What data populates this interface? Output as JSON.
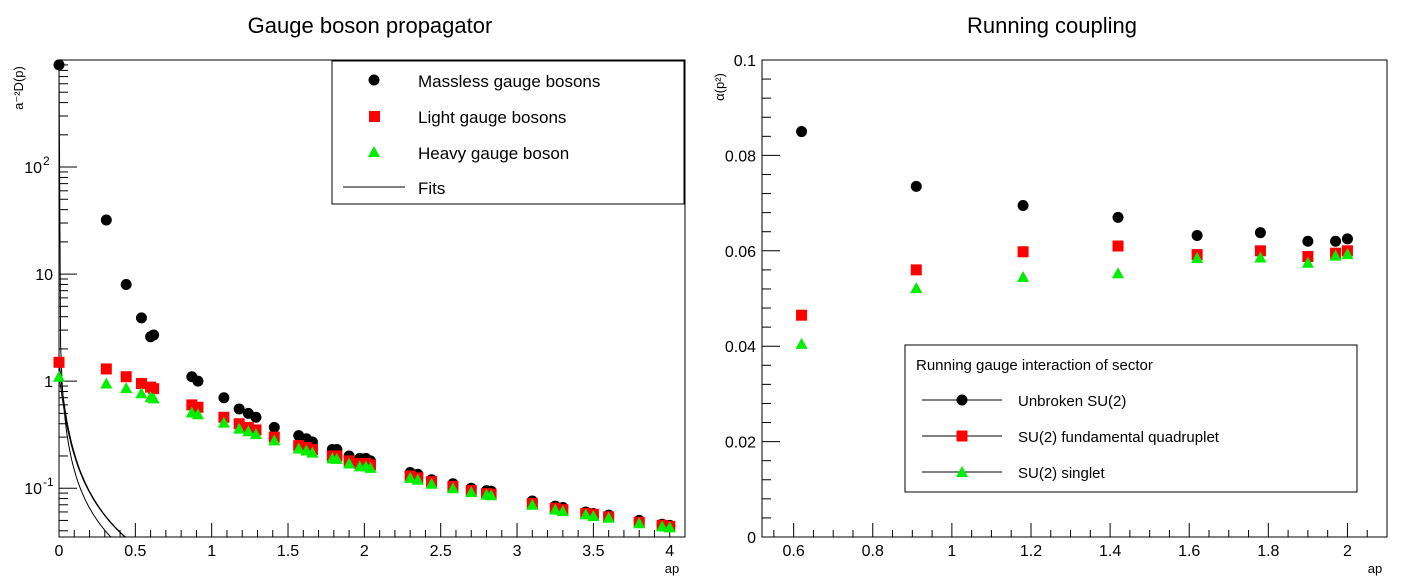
{
  "chart_data": [
    {
      "type": "scatter",
      "title": "Gauge boson propagator",
      "xlabel": "ap",
      "ylabel": "a⁻²D(p)",
      "yscale": "log",
      "xlim": [
        0,
        4.1
      ],
      "ylim": [
        0.035,
        1000
      ],
      "x_ticks": [
        "0",
        "0.5",
        "1",
        "1.5",
        "2",
        "2.5",
        "3",
        "3.5",
        "4"
      ],
      "y_ticks": [
        {
          "mant": "10",
          "exp": "-1",
          "value": 0.1
        },
        {
          "mant": "1",
          "exp": "",
          "value": 1
        },
        {
          "mant": "10",
          "exp": "",
          "value": 10
        },
        {
          "mant": "10",
          "exp": "2",
          "value": 100
        }
      ],
      "legend": {
        "position": "top-right",
        "entries": [
          "Massless gauge bosons",
          "Light gauge bosons",
          "Heavy gauge boson",
          "Fits"
        ]
      },
      "series": [
        {
          "name": "Massless gauge bosons",
          "color": "#000000",
          "marker": "circle",
          "x": [
            0,
            0.31,
            0.44,
            0.54,
            0.6,
            0.62,
            0.87,
            0.91,
            1.08,
            1.18,
            1.24,
            1.29,
            1.41,
            1.57,
            1.62,
            1.66,
            1.79,
            1.82,
            1.9,
            1.97,
            2.01,
            2.04,
            2.3,
            2.35,
            2.44,
            2.58,
            2.7,
            2.8,
            2.83,
            3.1,
            3.25,
            3.3,
            3.45,
            3.5,
            3.6,
            3.8,
            3.95,
            4.0
          ],
          "y": [
            900,
            32,
            8.0,
            3.9,
            2.6,
            2.7,
            1.1,
            1.0,
            0.7,
            0.55,
            0.5,
            0.46,
            0.37,
            0.31,
            0.29,
            0.27,
            0.23,
            0.23,
            0.2,
            0.19,
            0.19,
            0.18,
            0.14,
            0.135,
            0.12,
            0.11,
            0.1,
            0.095,
            0.094,
            0.076,
            0.068,
            0.066,
            0.06,
            0.058,
            0.056,
            0.05,
            0.046,
            0.045
          ]
        },
        {
          "name": "Light gauge bosons",
          "color": "#ff0000",
          "marker": "square",
          "x": [
            0,
            0.31,
            0.44,
            0.54,
            0.6,
            0.62,
            0.87,
            0.91,
            1.08,
            1.18,
            1.24,
            1.29,
            1.41,
            1.57,
            1.62,
            1.66,
            1.79,
            1.82,
            1.9,
            1.97,
            2.01,
            2.04,
            2.3,
            2.35,
            2.44,
            2.58,
            2.7,
            2.8,
            2.83,
            3.1,
            3.25,
            3.3,
            3.45,
            3.5,
            3.6,
            3.8,
            3.95,
            4.0
          ],
          "y": [
            1.5,
            1.3,
            1.1,
            0.95,
            0.88,
            0.85,
            0.6,
            0.57,
            0.46,
            0.4,
            0.37,
            0.35,
            0.3,
            0.25,
            0.24,
            0.23,
            0.2,
            0.2,
            0.18,
            0.17,
            0.17,
            0.165,
            0.13,
            0.125,
            0.115,
            0.104,
            0.095,
            0.089,
            0.088,
            0.072,
            0.065,
            0.063,
            0.058,
            0.057,
            0.054,
            0.048,
            0.045,
            0.044
          ]
        },
        {
          "name": "Heavy gauge boson",
          "color": "#00ee00",
          "marker": "triangle",
          "x": [
            0,
            0.31,
            0.44,
            0.54,
            0.6,
            0.62,
            0.87,
            0.91,
            1.08,
            1.18,
            1.24,
            1.29,
            1.41,
            1.57,
            1.62,
            1.66,
            1.79,
            1.82,
            1.9,
            1.97,
            2.01,
            2.04,
            2.3,
            2.35,
            2.44,
            2.58,
            2.7,
            2.8,
            2.83,
            3.1,
            3.25,
            3.3,
            3.45,
            3.5,
            3.6,
            3.8,
            3.95,
            4.0
          ],
          "y": [
            1.1,
            0.95,
            0.86,
            0.77,
            0.71,
            0.69,
            0.51,
            0.49,
            0.41,
            0.36,
            0.34,
            0.32,
            0.28,
            0.235,
            0.225,
            0.215,
            0.19,
            0.188,
            0.17,
            0.16,
            0.16,
            0.155,
            0.125,
            0.12,
            0.11,
            0.1,
            0.092,
            0.087,
            0.086,
            0.07,
            0.063,
            0.061,
            0.057,
            0.055,
            0.053,
            0.047,
            0.044,
            0.043
          ]
        }
      ],
      "fits": [
        {
          "name": "Fits",
          "color": "#000000",
          "A": 900,
          "B": 0.0085,
          "alpha": 1.18
        },
        {
          "name": "Fits",
          "color": "#000000",
          "A": 1.5,
          "B": 0.0085,
          "alpha": 1.32
        },
        {
          "name": "Fits",
          "color": "#000000",
          "A": 1.1,
          "B": 0.0085,
          "alpha": 1.32
        }
      ]
    },
    {
      "type": "scatter",
      "title": "Running coupling",
      "xlabel": "ap",
      "ylabel": "α(p²)",
      "xlim": [
        0.52,
        2.1
      ],
      "ylim": [
        0,
        0.1
      ],
      "x_ticks": [
        "0.6",
        "0.8",
        "1",
        "1.2",
        "1.4",
        "1.6",
        "1.8",
        "2"
      ],
      "y_ticks": [
        "0",
        "0.02",
        "0.04",
        "0.06",
        "0.08",
        "0.1"
      ],
      "legend": {
        "position": "bottom-right",
        "title": "Running gauge interaction of sector",
        "entries": [
          "Unbroken SU(2)",
          "SU(2) fundamental quadruplet",
          "SU(2) singlet"
        ]
      },
      "series": [
        {
          "name": "Unbroken SU(2)",
          "color": "#000000",
          "marker": "circle",
          "x": [
            0.62,
            0.91,
            1.18,
            1.42,
            1.62,
            1.78,
            1.9,
            1.97,
            2.0
          ],
          "y": [
            0.085,
            0.0735,
            0.0695,
            0.067,
            0.0632,
            0.0638,
            0.062,
            0.062,
            0.0625
          ]
        },
        {
          "name": "SU(2) fundamental quadruplet",
          "color": "#ff0000",
          "marker": "square",
          "x": [
            0.62,
            0.91,
            1.18,
            1.42,
            1.62,
            1.78,
            1.9,
            1.97,
            2.0
          ],
          "y": [
            0.0465,
            0.056,
            0.0598,
            0.061,
            0.0592,
            0.06,
            0.0588,
            0.0595,
            0.06
          ]
        },
        {
          "name": "SU(2) singlet",
          "color": "#00ee00",
          "marker": "triangle",
          "x": [
            0.62,
            0.91,
            1.18,
            1.42,
            1.62,
            1.78,
            1.9,
            1.97,
            2.0
          ],
          "y": [
            0.0405,
            0.0522,
            0.0545,
            0.0553,
            0.0585,
            0.0586,
            0.0575,
            0.059,
            0.0593
          ]
        }
      ]
    }
  ]
}
